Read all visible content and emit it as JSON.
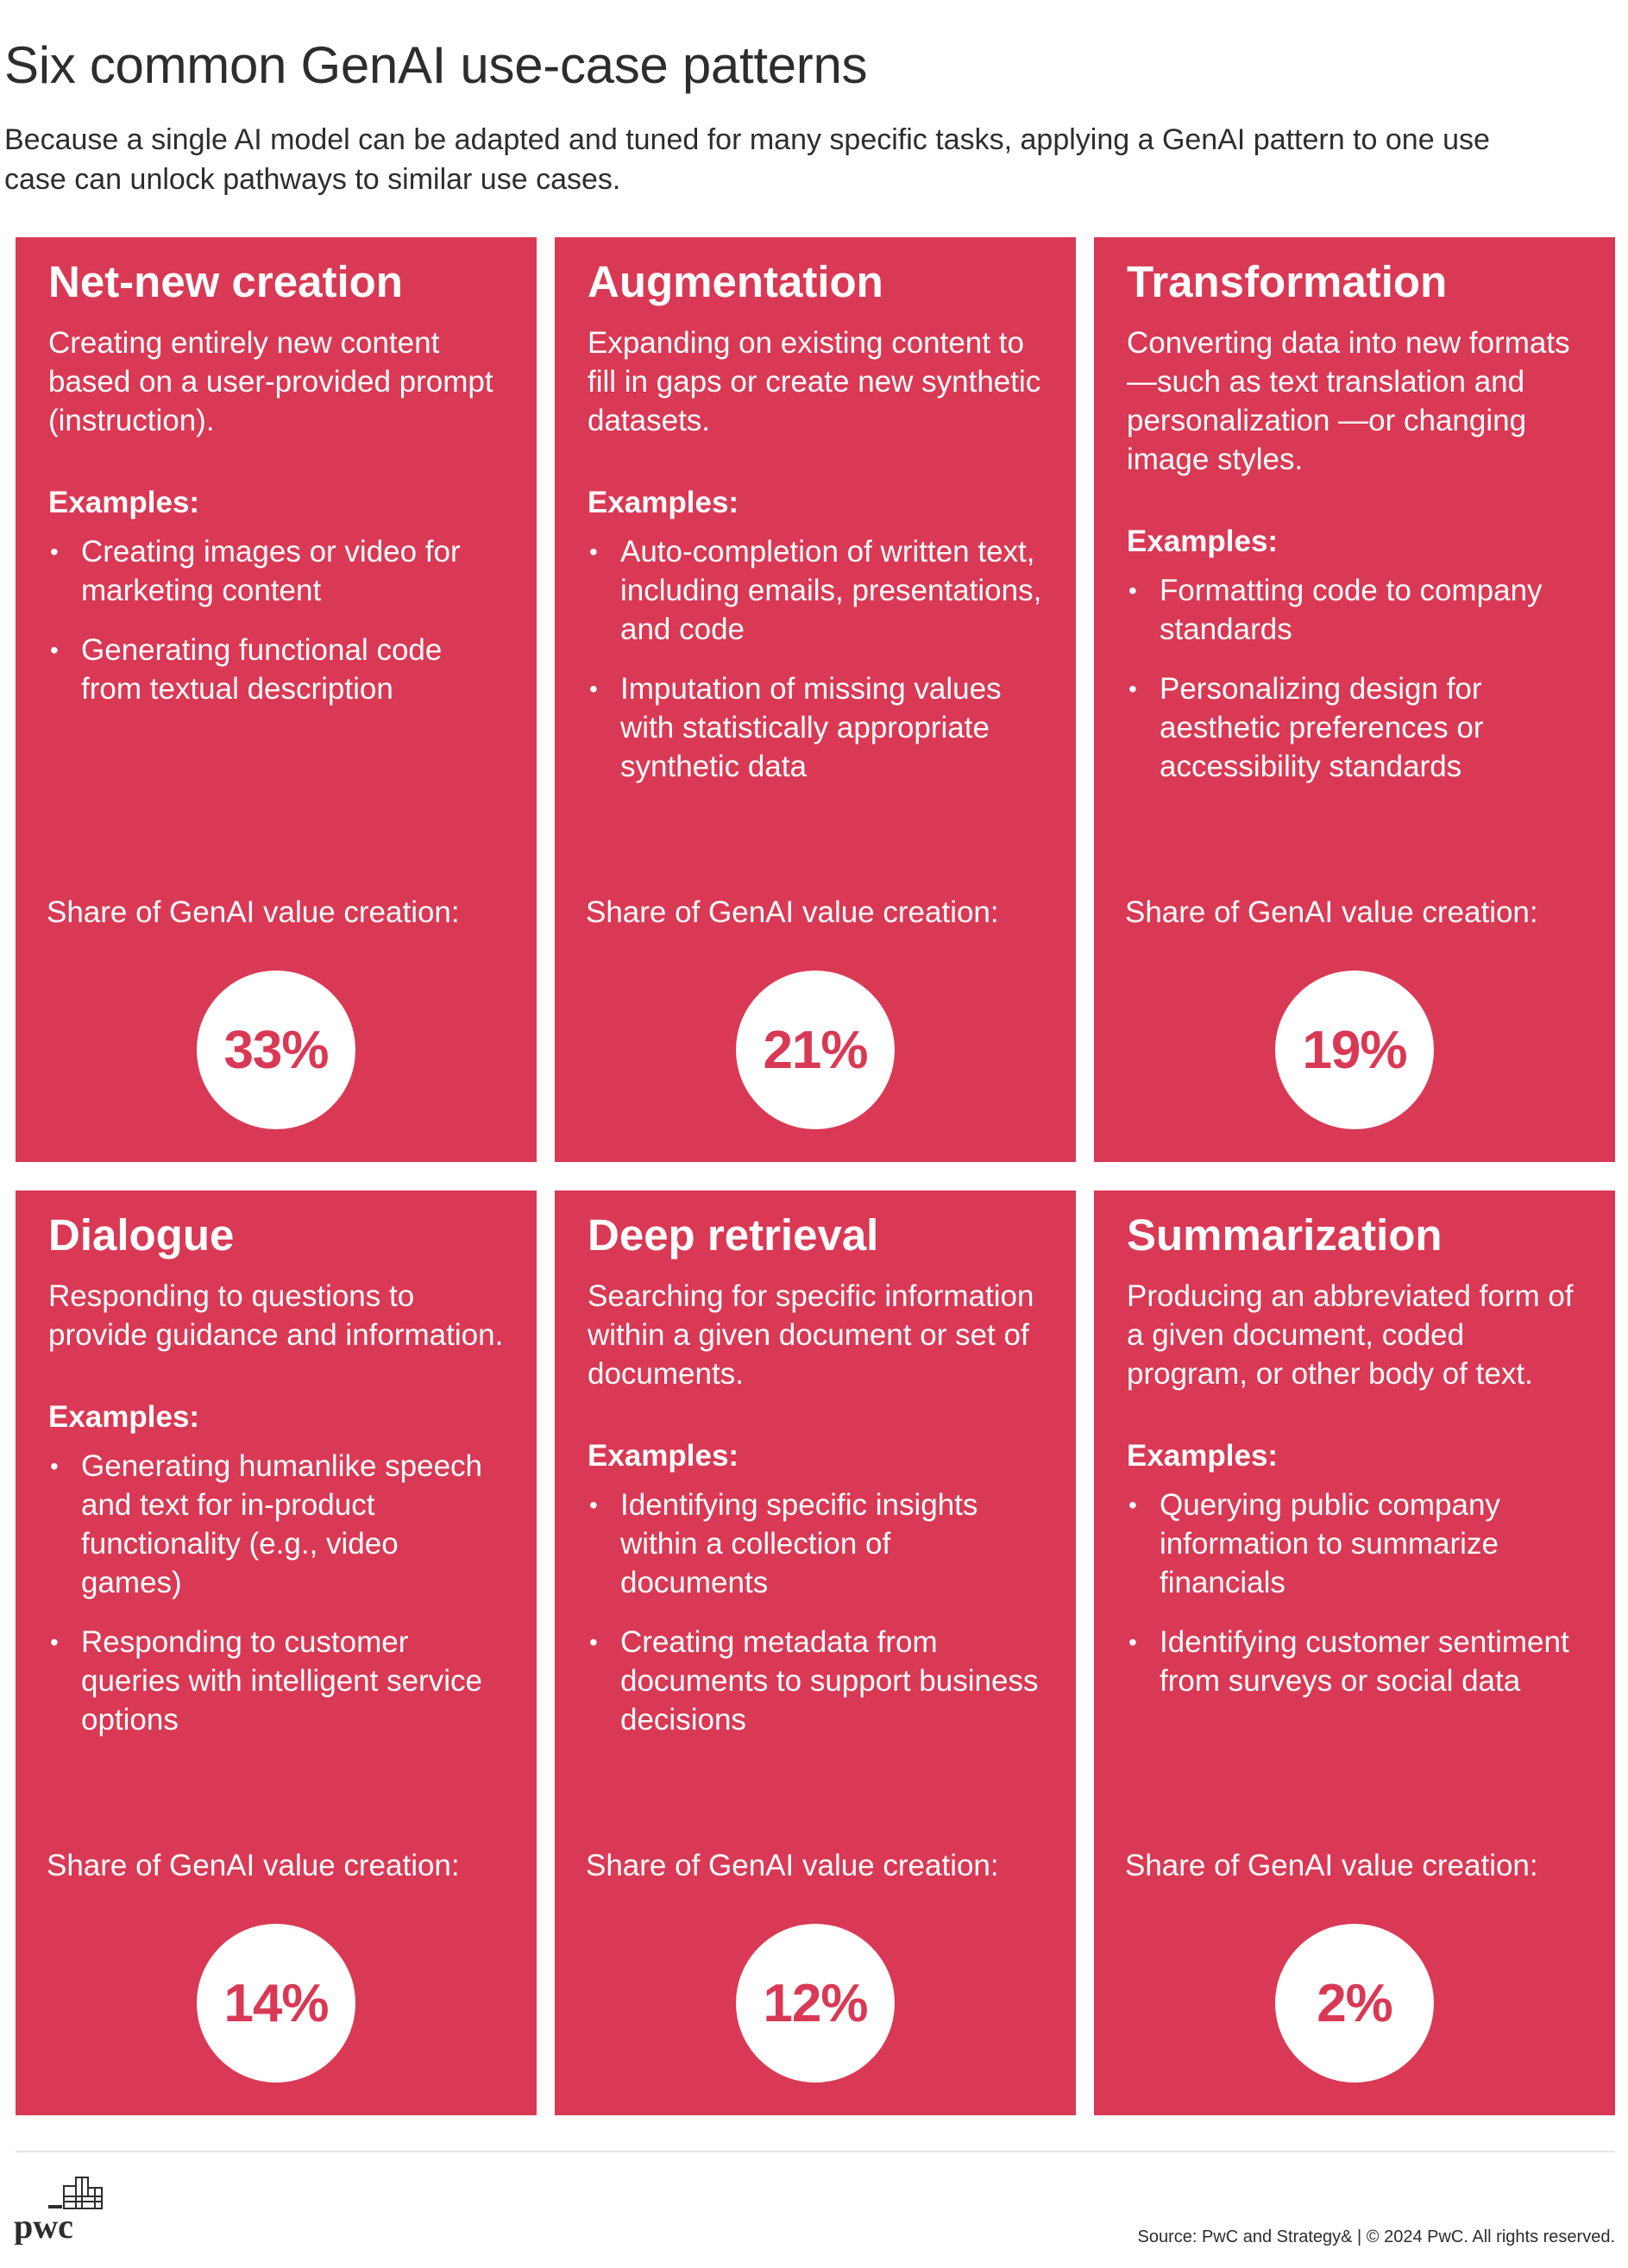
{
  "header": {
    "title": "Six common GenAI use-case patterns",
    "subtitle": "Because a single AI model can be adapted and tuned for many specific tasks, applying a GenAI pattern to one use case can unlock pathways to similar use cases."
  },
  "labels": {
    "examples": "Examples:",
    "share": "Share of GenAI value creation:"
  },
  "cards": [
    {
      "title": "Net-new creation",
      "description": "Creating entirely new content based on a user-provided prompt (instruction).",
      "examples": [
        "Creating images or video for marketing content",
        "Generating functional code from textual description"
      ],
      "share": "33%"
    },
    {
      "title": "Augmentation",
      "description": "Expanding on existing content to fill in gaps or create new synthetic datasets.",
      "examples": [
        "Auto-completion of written text, including emails, presentations, and code",
        "Imputation of missing values with statistically appropriate synthetic data"
      ],
      "share": "21%"
    },
    {
      "title": "Transformation",
      "description": "Converting data into new formats—such as text translation and personalization —or changing image styles.",
      "examples": [
        "Formatting code to company standards",
        "Personalizing design for aesthetic preferences or accessibility standards"
      ],
      "share": "19%"
    },
    {
      "title": "Dialogue",
      "description": "Responding to questions to provide guidance and information.",
      "examples": [
        "Generating humanlike speech and text for in-product functionality (e.g., video games)",
        "Responding to customer queries with intelligent service options"
      ],
      "share": "14%"
    },
    {
      "title": "Deep retrieval",
      "description": "Searching for specific information within a given document or set of documents.",
      "examples": [
        "Identifying specific insights within a collection of documents",
        "Creating metadata from documents to support business decisions"
      ],
      "share": "12%"
    },
    {
      "title": "Summarization",
      "description": "Producing an abbreviated form of a given document, coded program, or other body of text.",
      "examples": [
        "Querying public company information to summarize financials",
        "Identifying customer sentiment from surveys or social data"
      ],
      "share": "2%"
    }
  ],
  "footer": {
    "logo_text": "pwc",
    "source": "Source: PwC and Strategy&  |  © 2024 PwC. All rights reserved."
  },
  "colors": {
    "card_background": "#d93954",
    "card_text": "#ffffff",
    "percent_text": "#d93954"
  },
  "icons": {
    "logo": "pwc-logo-icon"
  }
}
